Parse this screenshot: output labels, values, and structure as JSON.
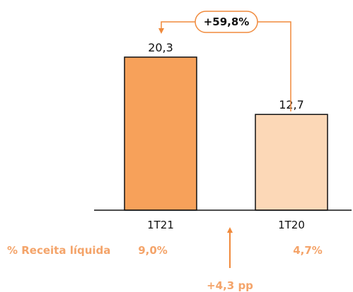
{
  "chart_data": {
    "type": "bar",
    "categories": [
      "1T21",
      "1T20"
    ],
    "values": [
      20.3,
      12.7
    ],
    "value_labels": [
      "20,3",
      "12,7"
    ],
    "ylim": [
      0,
      20.3
    ],
    "bar_colors": [
      "#f7a15a",
      "#fcd8b7"
    ],
    "bar_stroke": "#111111",
    "growth_label": "+59,8%",
    "annotation_color": "#f08a3c"
  },
  "net_revenue": {
    "label": "% Receita líquida",
    "values": [
      "9,0%",
      "4,7%"
    ],
    "change_label": "+4,3 pp",
    "color": "#f4a46a"
  }
}
